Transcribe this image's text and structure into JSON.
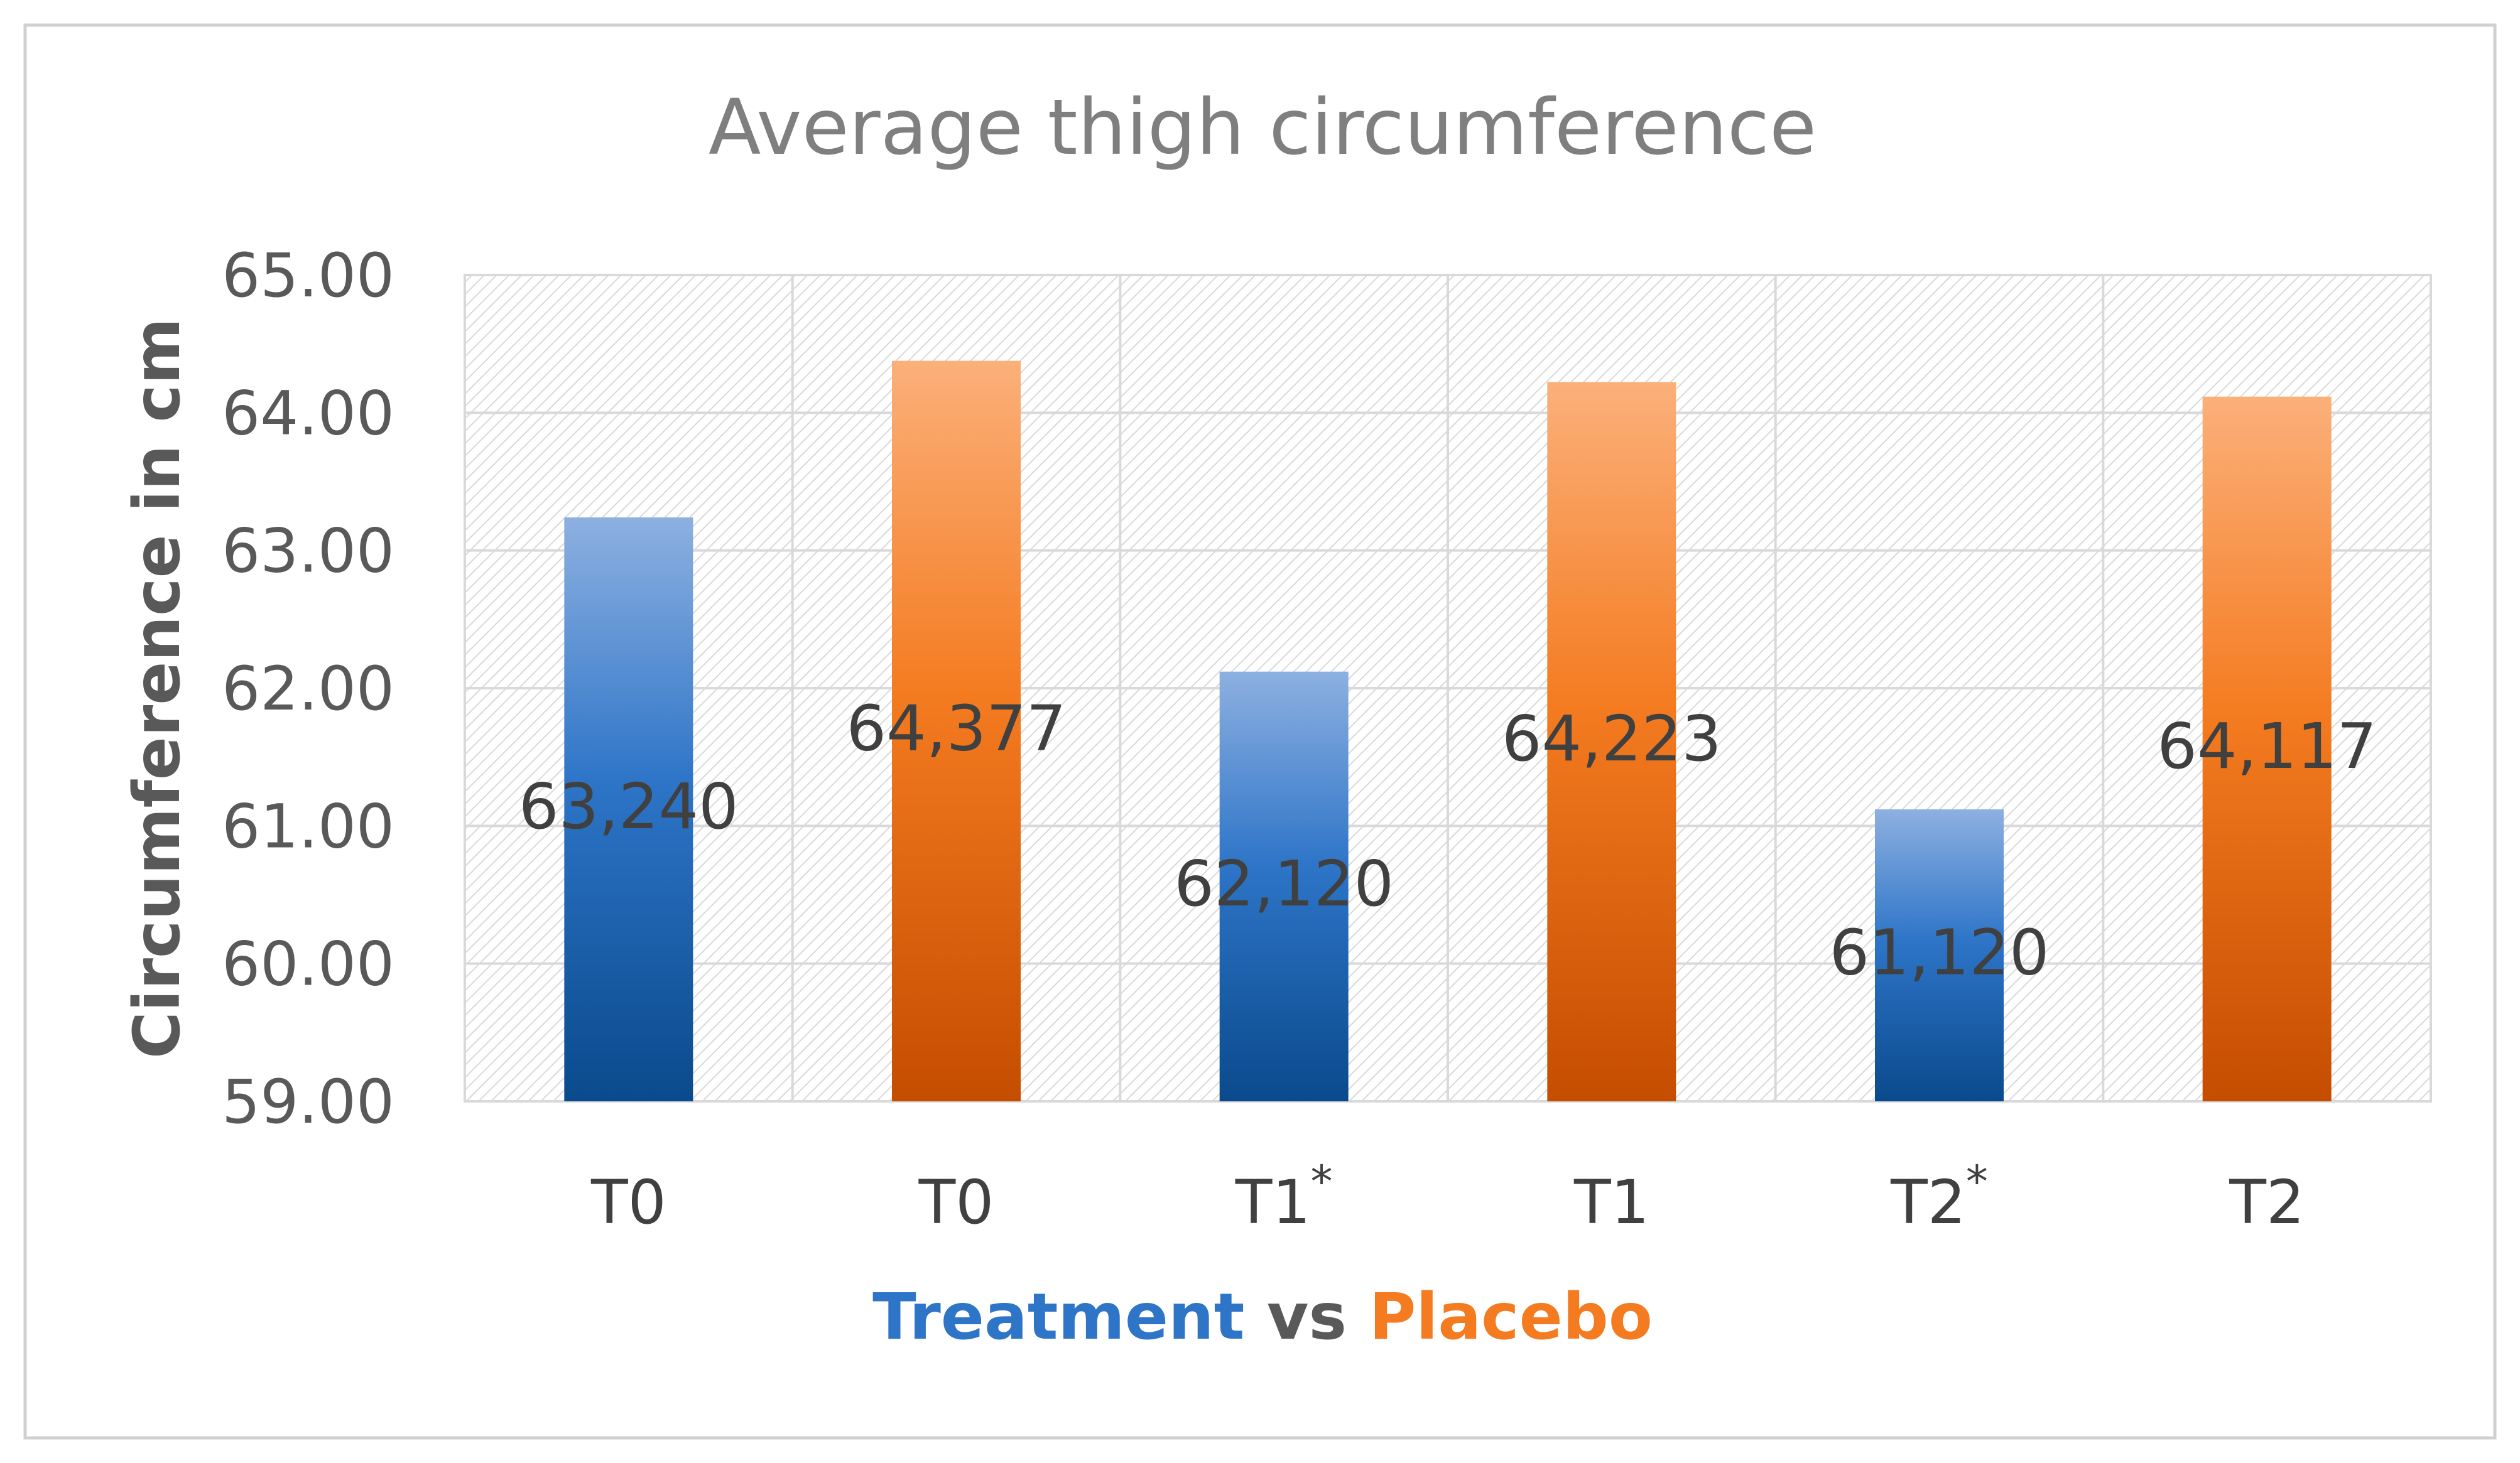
{
  "chart_data": {
    "type": "bar",
    "title": "Average thigh circumference",
    "ylabel": "Circumference in cm",
    "xlabel": {
      "parts": [
        {
          "text": "Treatment",
          "color": "#2E75C8"
        },
        {
          "text": " vs ",
          "color": "#595959"
        },
        {
          "text": "Placebo",
          "color": "#F47B20"
        }
      ]
    },
    "ylim": [
      59,
      65
    ],
    "yticks": [
      59,
      60,
      61,
      62,
      63,
      64,
      65
    ],
    "ytick_labels": [
      "59.00",
      "60.00",
      "61.00",
      "62.00",
      "63.00",
      "64.00",
      "65.00"
    ],
    "grid": true,
    "categories": [
      {
        "label": "T0",
        "mark": ""
      },
      {
        "label": "T0",
        "mark": ""
      },
      {
        "label": "T1",
        "mark": "*"
      },
      {
        "label": "T1",
        "mark": ""
      },
      {
        "label": "T2",
        "mark": "*"
      },
      {
        "label": "T2",
        "mark": ""
      }
    ],
    "values": [
      63.24,
      64.377,
      62.12,
      64.223,
      61.12,
      64.117
    ],
    "data_labels": [
      "63,240",
      "64,377",
      "62,120",
      "64,223",
      "61,120",
      "64,117"
    ],
    "groups": [
      "Treatment",
      "Placebo",
      "Treatment",
      "Placebo",
      "Treatment",
      "Placebo"
    ],
    "group_colors": {
      "Treatment": {
        "light": "#8DB0E0",
        "mid": "#2E75C8",
        "dark": "#0A4A8C"
      },
      "Placebo": {
        "light": "#FBB07A",
        "mid": "#F47B20",
        "dark": "#C54D00"
      }
    }
  }
}
